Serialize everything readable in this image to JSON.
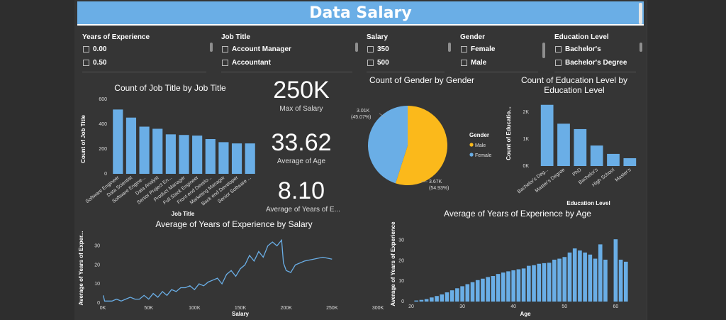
{
  "title": "Data Salary",
  "slicers": [
    {
      "title": "Years of Experience",
      "items": [
        "0.00",
        "0.50"
      ]
    },
    {
      "title": "Job Title",
      "items": [
        "Account Manager",
        "Accountant"
      ]
    },
    {
      "title": "Salary",
      "items": [
        "350",
        "500"
      ]
    },
    {
      "title": "Gender",
      "items": [
        "Female",
        "Male"
      ]
    },
    {
      "title": "Education Level",
      "items": [
        "Bachelor's",
        "Bachelor's Degree"
      ]
    }
  ],
  "kpis": [
    {
      "value": "250K",
      "label": "Max of Salary"
    },
    {
      "value": "33.62",
      "label": "Average of Age"
    },
    {
      "value": "8.10",
      "label": "Average of Years of E..."
    }
  ],
  "colors": {
    "bar": "#6aaee6",
    "male": "#fbb91b",
    "female": "#6aaee6",
    "title_bar": "#6aaee6"
  },
  "chart_data": [
    {
      "type": "bar",
      "title": "Count of Job Title by Job Title",
      "xlabel": "Job Title",
      "ylabel": "Count of Job Title",
      "ylim": [
        0,
        600
      ],
      "yticks": [
        "0",
        "200",
        "400",
        "600"
      ],
      "categories": [
        "Software Engineer",
        "Data Scientist",
        "Software Engine...",
        "Data Analyst",
        "Senior Project En...",
        "Product Manager",
        "Full Stack Engineer",
        "Front end Develo...",
        "Marketing Manager",
        "Back end Developer",
        "Senior Software ..."
      ],
      "values": [
        518,
        453,
        380,
        363,
        318,
        313,
        308,
        280,
        255,
        245,
        245
      ]
    },
    {
      "type": "pie",
      "title": "Count of Gender by Gender",
      "legend_title": "Gender",
      "slices": [
        {
          "name": "Male",
          "value": 3.67,
          "label": "3.67K",
          "pct": "(54.93%)"
        },
        {
          "name": "Female",
          "value": 3.01,
          "label": "3.01K",
          "pct": "(45.07%)"
        }
      ]
    },
    {
      "type": "bar",
      "title": "Count of Education Level by Education Level",
      "xlabel": "Education Level",
      "ylabel": "Count of Educatio...",
      "ylim": [
        0,
        2500
      ],
      "yticks": [
        "0K",
        "1K",
        "2K"
      ],
      "categories": [
        "Bachelor's Deg...",
        "Master's Degree",
        "PhD",
        "Bachelor's",
        "High School",
        "Master's"
      ],
      "values": [
        2270,
        1570,
        1370,
        760,
        450,
        290
      ]
    },
    {
      "type": "line",
      "title": "Average of Years of Experience by Salary",
      "xlabel": "Salary",
      "ylabel": "Average of Years of Exper...",
      "xlim": [
        0,
        300000
      ],
      "ylim": [
        0,
        35
      ],
      "xticks": [
        "0K",
        "50K",
        "100K",
        "150K",
        "200K",
        "250K",
        "300K"
      ],
      "yticks": [
        "0",
        "10",
        "20",
        "30"
      ],
      "x": [
        500,
        2000,
        5000,
        10000,
        15000,
        20000,
        25000,
        30000,
        35000,
        40000,
        45000,
        50000,
        55000,
        60000,
        65000,
        70000,
        75000,
        80000,
        85000,
        90000,
        95000,
        100000,
        105000,
        110000,
        115000,
        120000,
        125000,
        130000,
        135000,
        140000,
        145000,
        150000,
        155000,
        160000,
        165000,
        170000,
        175000,
        180000,
        185000,
        190000,
        195000,
        197000,
        200000,
        205000,
        210000,
        215000,
        220000,
        230000,
        240000,
        250000
      ],
      "y": [
        4,
        1,
        1,
        1,
        2,
        1,
        2,
        3,
        2,
        2,
        4,
        2,
        5,
        3,
        6,
        4,
        7,
        6,
        8,
        8,
        9,
        7,
        10,
        9,
        11,
        12,
        13,
        10,
        15,
        17,
        14,
        18,
        20,
        25,
        22,
        27,
        24,
        30,
        32,
        30,
        33,
        21,
        17,
        16,
        20,
        21,
        22,
        23,
        24,
        23
      ]
    },
    {
      "type": "bar",
      "title": "Average of Years of Experience by Age",
      "xlabel": "Age",
      "ylabel": "Average of Years of Experience",
      "xlim": [
        20,
        63
      ],
      "ylim": [
        0,
        33
      ],
      "xticks": [
        "20",
        "30",
        "40",
        "50",
        "60"
      ],
      "yticks": [
        "0",
        "10",
        "20",
        "30"
      ],
      "x": [
        21,
        22,
        23,
        24,
        25,
        26,
        27,
        28,
        29,
        30,
        31,
        32,
        33,
        34,
        35,
        36,
        37,
        38,
        39,
        40,
        41,
        42,
        43,
        44,
        45,
        46,
        47,
        48,
        49,
        50,
        51,
        52,
        53,
        54,
        55,
        56,
        57,
        58,
        59,
        60,
        61,
        62
      ],
      "values": [
        0.5,
        0.8,
        1.2,
        2,
        2.7,
        3.5,
        4.5,
        5.5,
        6.5,
        7.5,
        8.5,
        9.5,
        10.5,
        11.2,
        12,
        12.5,
        13.5,
        14.2,
        14.8,
        15.3,
        15.8,
        16.2,
        17.5,
        17.8,
        18.5,
        18.8,
        19,
        20.5,
        21,
        21.8,
        24,
        26,
        25,
        24,
        23,
        21,
        28,
        20.5,
        0,
        30.5,
        20.5,
        19.5
      ]
    }
  ]
}
